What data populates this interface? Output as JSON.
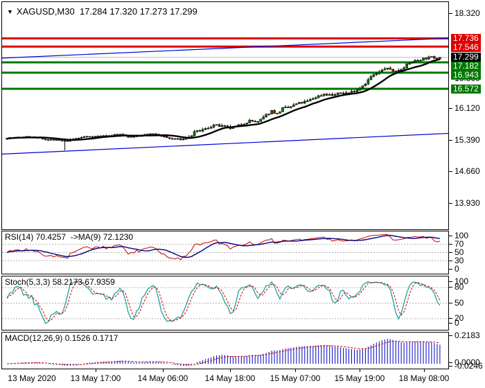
{
  "window": {
    "title": {
      "dropdown_icon": "▼",
      "symbol": "XAGUSD,M30",
      "ohlc_values": "17.284 17.320 17.273 17.299"
    }
  },
  "chart_data": {
    "type": "candlestick",
    "symbol": "XAGUSD",
    "timeframe": "M30",
    "ohlc_current": {
      "open": 17.284,
      "high": 17.32,
      "low": 17.273,
      "close": 17.299
    },
    "visible_price_range": [
      13.3,
      18.58
    ],
    "bars_count": 158,
    "price_axis_ticks": [
      {
        "label": "18.320",
        "price": 18.32,
        "partially_hidden": false
      },
      {
        "label": "16.860",
        "price": 16.86,
        "partially_hidden": true
      },
      {
        "label": "16.120",
        "price": 16.12,
        "partially_hidden": false
      },
      {
        "label": "15.390",
        "price": 15.39,
        "partially_hidden": false
      },
      {
        "label": "14.660",
        "price": 14.66,
        "partially_hidden": false
      },
      {
        "label": "13.930",
        "price": 13.93,
        "partially_hidden": false
      }
    ],
    "price_badges": [
      {
        "label": "17.736",
        "price": 17.736,
        "role": "resistance",
        "color": "#dd0000"
      },
      {
        "label": "17.546",
        "price": 17.546,
        "role": "resistance",
        "color": "#dd0000"
      },
      {
        "label": "17.299",
        "price": 17.299,
        "role": "current-price",
        "color": "#000000"
      },
      {
        "label": "17.182",
        "price": 17.182,
        "role": "support",
        "color": "#007800"
      },
      {
        "label": "16.943",
        "price": 16.943,
        "role": "support",
        "color": "#007800"
      },
      {
        "label": "16.572",
        "price": 16.572,
        "role": "support",
        "color": "#007800"
      }
    ],
    "horizontal_lines": [
      {
        "price": 17.736,
        "color": "#dd0000",
        "width": 3
      },
      {
        "price": 17.546,
        "color": "#dd0000",
        "width": 3
      },
      {
        "price": 17.299,
        "color": "#bbbbbb",
        "width": 1
      },
      {
        "price": 17.182,
        "color": "#007800",
        "width": 3
      },
      {
        "price": 16.943,
        "color": "#007800",
        "width": 3
      },
      {
        "price": 16.572,
        "color": "#007800",
        "width": 3
      }
    ],
    "trend_channel": {
      "color": "#0000d8",
      "upper_line_prices": [
        17.28,
        17.74
      ],
      "lower_line_prices": [
        15.06,
        15.54
      ]
    },
    "time_labels": [
      "13 May 2020",
      "13 May 17:00",
      "14 May 06:00",
      "14 May 18:00",
      "15 May 07:00",
      "15 May 19:00",
      "18 May 08:00"
    ],
    "price_path_anchors": [
      [
        0,
        15.43
      ],
      [
        8,
        15.46
      ],
      [
        13,
        15.41
      ],
      [
        21,
        15.36
      ],
      [
        28,
        15.46
      ],
      [
        36,
        15.48
      ],
      [
        41,
        15.52
      ],
      [
        44,
        15.46
      ],
      [
        48,
        15.48
      ],
      [
        52,
        15.53
      ],
      [
        55,
        15.5
      ],
      [
        59,
        15.42
      ],
      [
        63,
        15.4
      ],
      [
        66,
        15.44
      ],
      [
        68,
        15.56
      ],
      [
        72,
        15.64
      ],
      [
        75,
        15.73
      ],
      [
        78,
        15.7
      ],
      [
        81,
        15.66
      ],
      [
        84,
        15.72
      ],
      [
        88,
        15.83
      ],
      [
        91,
        15.8
      ],
      [
        94,
        15.96
      ],
      [
        96,
        16.06
      ],
      [
        98,
        15.99
      ],
      [
        100,
        16.12
      ],
      [
        102,
        16.13
      ],
      [
        105,
        16.22
      ],
      [
        109,
        16.28
      ],
      [
        112,
        16.38
      ],
      [
        115,
        16.45
      ],
      [
        118,
        16.42
      ],
      [
        121,
        16.47
      ],
      [
        124,
        16.48
      ],
      [
        127,
        16.55
      ],
      [
        130,
        16.7
      ],
      [
        132,
        16.85
      ],
      [
        135,
        16.95
      ],
      [
        137,
        17.04
      ],
      [
        139,
        17.02
      ],
      [
        141,
        16.97
      ],
      [
        143,
        17.04
      ],
      [
        145,
        17.12
      ],
      [
        147,
        17.2
      ],
      [
        149,
        17.23
      ],
      [
        151,
        17.27
      ],
      [
        154,
        17.3
      ],
      [
        156,
        17.28
      ],
      [
        157,
        17.3
      ]
    ],
    "candle_colors": {
      "bull": "#007a00",
      "bear": "#c00000",
      "wick": "#000000",
      "ma_line": "#000000"
    },
    "indicators": [
      {
        "id": "rsi",
        "label": "RSI(14) 70.4257  ->MA(9) 72.1230",
        "name": "RSI",
        "period": 14,
        "value": 70.4257,
        "ma_period": 9,
        "ma_value": 72.123,
        "axis_labels": [
          "100",
          "70",
          "50",
          "30",
          "0"
        ],
        "level_lines": [
          70,
          50,
          30
        ],
        "line_colors": {
          "main": "#cc0000",
          "ma": "#000080"
        }
      },
      {
        "id": "stoch",
        "label": "Stoch(5,3,3) 58.2173 67.9359",
        "name": "Stochastic",
        "params": [
          5,
          3,
          3
        ],
        "k_value": 58.2173,
        "d_value": 67.9359,
        "axis_labels": [
          "100",
          "80",
          "50",
          "20",
          "0"
        ],
        "level_lines": [
          80,
          50,
          20
        ],
        "line_colors": {
          "k": "#20a0a0",
          "d": "#cc0000"
        }
      },
      {
        "id": "macd",
        "label": "MACD(12,26,9) 0.1526 0.1717",
        "name": "MACD",
        "params": [
          12,
          26,
          9
        ],
        "macd_value": 0.1526,
        "signal_value": 0.1717,
        "axis_labels": [
          "0.2183",
          "0.0000",
          "-0.0246"
        ],
        "axis_range": [
          -0.0246,
          0.2183
        ],
        "line_colors": {
          "histogram": "#0000c0",
          "signal": "#cc0000"
        }
      }
    ]
  }
}
